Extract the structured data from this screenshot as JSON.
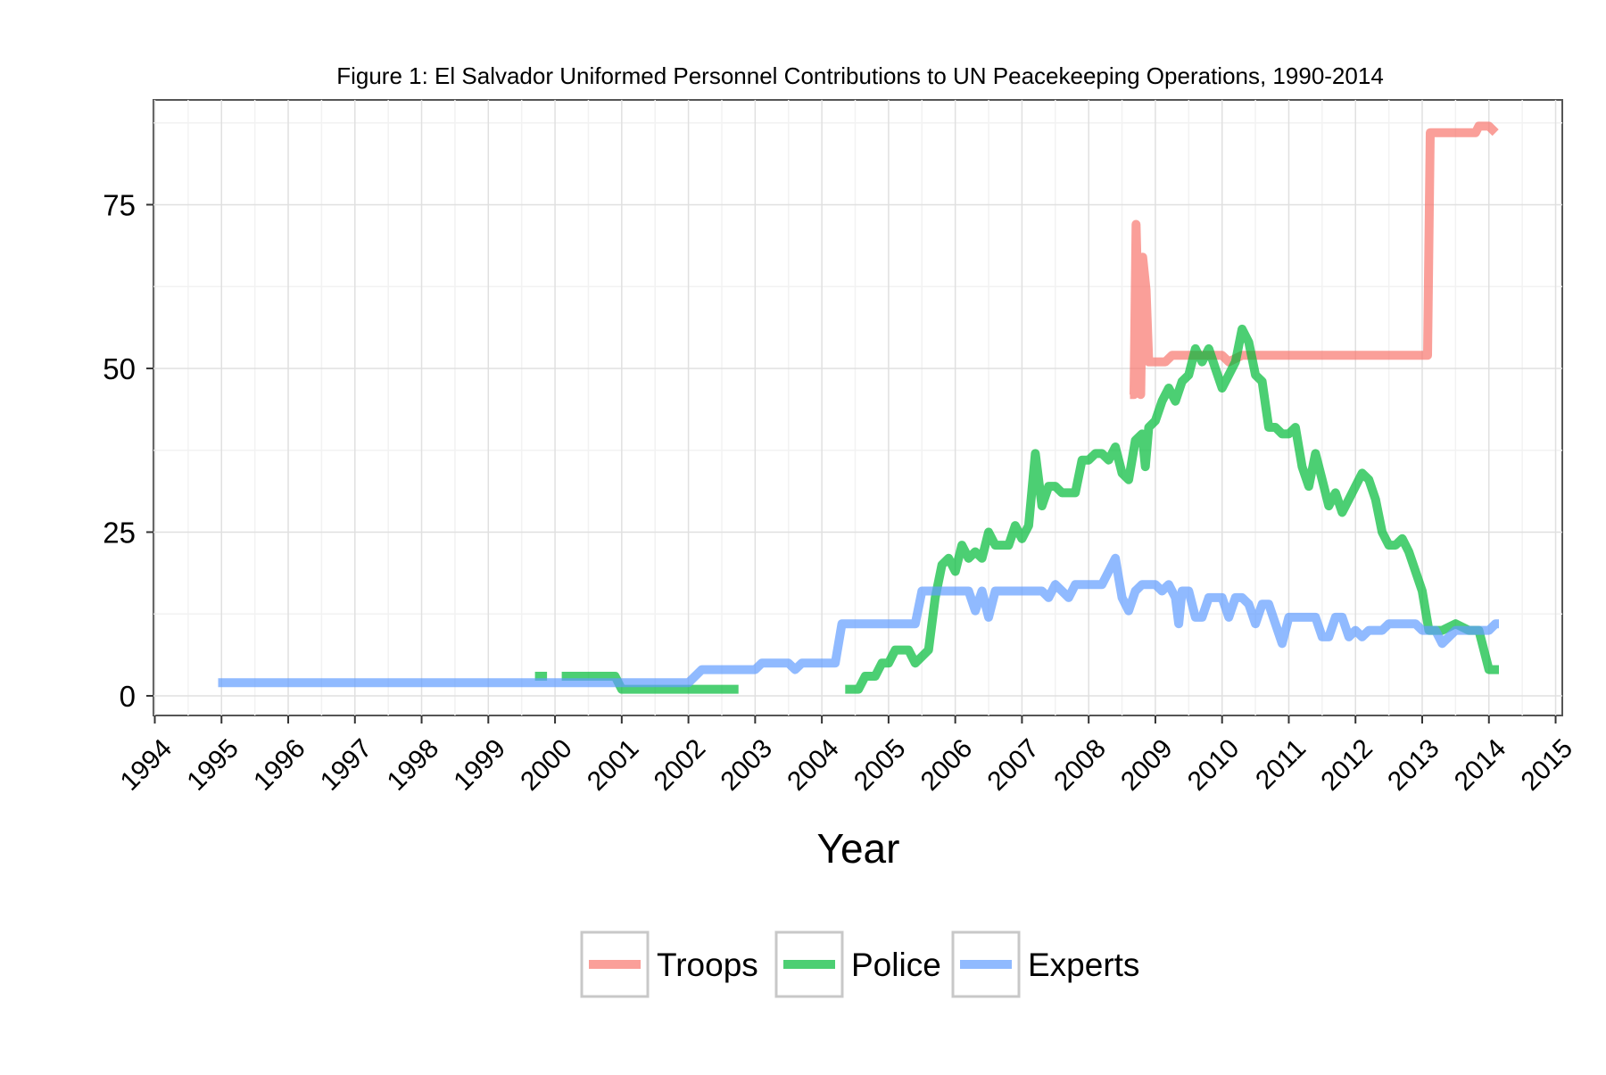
{
  "chart_data": {
    "type": "line",
    "title": "Figure 1: El Salvador Uniformed Personnel Contributions to UN Peacekeeping Operations, 1990-2014",
    "xlabel": "Year",
    "ylabel": "",
    "xlim": [
      1993.98,
      2015.1
    ],
    "ylim": [
      -3,
      91
    ],
    "x_ticks": [
      "1994",
      "1995",
      "1996",
      "1997",
      "1998",
      "1999",
      "2000",
      "2001",
      "2002",
      "2003",
      "2004",
      "2005",
      "2006",
      "2007",
      "2008",
      "2009",
      "2010",
      "2011",
      "2012",
      "2013",
      "2014",
      "2015"
    ],
    "y_ticks": [
      0,
      25,
      50,
      75
    ],
    "grid": true,
    "legend_position": "bottom",
    "series": [
      {
        "name": "Troops",
        "color": "#F8766D",
        "segments": [
          [
            [
              2008.62,
              46
            ],
            [
              2008.68,
              46
            ],
            [
              2008.71,
              72
            ],
            [
              2008.74,
              60
            ],
            [
              2008.78,
              46
            ],
            [
              2008.81,
              67
            ],
            [
              2008.86,
              62
            ],
            [
              2008.9,
              51
            ],
            [
              2009.0,
              51
            ],
            [
              2009.15,
              51
            ],
            [
              2009.25,
              52
            ],
            [
              2009.5,
              52
            ],
            [
              2009.9,
              52
            ],
            [
              2010.0,
              52
            ],
            [
              2010.1,
              51
            ],
            [
              2010.3,
              52
            ],
            [
              2010.5,
              52
            ],
            [
              2011.0,
              52
            ],
            [
              2012.0,
              52
            ],
            [
              2012.5,
              52
            ],
            [
              2013.08,
              52
            ],
            [
              2013.12,
              86
            ],
            [
              2013.5,
              86
            ],
            [
              2013.8,
              86
            ],
            [
              2013.85,
              87
            ],
            [
              2014.0,
              87
            ],
            [
              2014.1,
              86
            ]
          ]
        ]
      },
      {
        "name": "Police",
        "color": "#00BA38",
        "segments": [
          [
            [
              1999.7,
              3
            ],
            [
              1999.88,
              3
            ]
          ],
          [
            [
              2000.1,
              3
            ],
            [
              2000.9,
              3
            ],
            [
              2001.0,
              1
            ],
            [
              2002.75,
              1
            ]
          ],
          [
            [
              2004.35,
              1
            ],
            [
              2004.55,
              1
            ],
            [
              2004.65,
              3
            ],
            [
              2004.8,
              3
            ],
            [
              2004.9,
              5
            ],
            [
              2005.0,
              5
            ],
            [
              2005.1,
              7
            ],
            [
              2005.3,
              7
            ],
            [
              2005.4,
              5
            ],
            [
              2005.5,
              6
            ],
            [
              2005.6,
              7
            ],
            [
              2005.7,
              15
            ],
            [
              2005.8,
              20
            ],
            [
              2005.9,
              21
            ],
            [
              2006.0,
              19
            ],
            [
              2006.1,
              23
            ],
            [
              2006.2,
              21
            ],
            [
              2006.3,
              22
            ],
            [
              2006.4,
              21
            ],
            [
              2006.5,
              25
            ],
            [
              2006.6,
              23
            ],
            [
              2006.8,
              23
            ],
            [
              2006.9,
              26
            ],
            [
              2007.0,
              24
            ],
            [
              2007.1,
              26
            ],
            [
              2007.2,
              37
            ],
            [
              2007.3,
              29
            ],
            [
              2007.4,
              32
            ],
            [
              2007.5,
              32
            ],
            [
              2007.6,
              31
            ],
            [
              2007.8,
              31
            ],
            [
              2007.9,
              36
            ],
            [
              2008.0,
              36
            ],
            [
              2008.1,
              37
            ],
            [
              2008.2,
              37
            ],
            [
              2008.3,
              36
            ],
            [
              2008.4,
              38
            ],
            [
              2008.5,
              34
            ],
            [
              2008.6,
              33
            ],
            [
              2008.7,
              39
            ],
            [
              2008.8,
              40
            ],
            [
              2008.85,
              35
            ],
            [
              2008.9,
              41
            ],
            [
              2009.0,
              42
            ],
            [
              2009.1,
              45
            ],
            [
              2009.2,
              47
            ],
            [
              2009.3,
              45
            ],
            [
              2009.4,
              48
            ],
            [
              2009.5,
              49
            ],
            [
              2009.6,
              53
            ],
            [
              2009.7,
              51
            ],
            [
              2009.8,
              53
            ],
            [
              2009.9,
              50
            ],
            [
              2010.0,
              47
            ],
            [
              2010.1,
              49
            ],
            [
              2010.2,
              51
            ],
            [
              2010.3,
              56
            ],
            [
              2010.4,
              54
            ],
            [
              2010.5,
              49
            ],
            [
              2010.6,
              48
            ],
            [
              2010.7,
              41
            ],
            [
              2010.8,
              41
            ],
            [
              2010.9,
              40
            ],
            [
              2011.0,
              40
            ],
            [
              2011.1,
              41
            ],
            [
              2011.2,
              35
            ],
            [
              2011.3,
              32
            ],
            [
              2011.4,
              37
            ],
            [
              2011.5,
              33
            ],
            [
              2011.6,
              29
            ],
            [
              2011.7,
              31
            ],
            [
              2011.8,
              28
            ],
            [
              2011.9,
              30
            ],
            [
              2012.0,
              32
            ],
            [
              2012.1,
              34
            ],
            [
              2012.2,
              33
            ],
            [
              2012.3,
              30
            ],
            [
              2012.4,
              25
            ],
            [
              2012.5,
              23
            ],
            [
              2012.6,
              23
            ],
            [
              2012.7,
              24
            ],
            [
              2012.8,
              22
            ],
            [
              2012.9,
              19
            ],
            [
              2013.0,
              16
            ],
            [
              2013.1,
              10
            ],
            [
              2013.3,
              10
            ],
            [
              2013.5,
              11
            ],
            [
              2013.7,
              10
            ],
            [
              2013.85,
              10
            ],
            [
              2014.0,
              4
            ],
            [
              2014.15,
              4
            ]
          ]
        ]
      },
      {
        "name": "Experts",
        "color": "#619CFF",
        "segments": [
          [
            [
              1994.95,
              2
            ],
            [
              2000.0,
              2
            ],
            [
              2001.0,
              2
            ],
            [
              2002.0,
              2
            ],
            [
              2002.2,
              4
            ],
            [
              2003.0,
              4
            ],
            [
              2003.1,
              5
            ],
            [
              2003.5,
              5
            ],
            [
              2003.6,
              4
            ],
            [
              2003.7,
              5
            ],
            [
              2004.0,
              5
            ],
            [
              2004.2,
              5
            ],
            [
              2004.3,
              11
            ],
            [
              2005.0,
              11
            ],
            [
              2005.4,
              11
            ],
            [
              2005.5,
              16
            ],
            [
              2006.0,
              16
            ],
            [
              2006.2,
              16
            ],
            [
              2006.3,
              13
            ],
            [
              2006.4,
              16
            ],
            [
              2006.5,
              12
            ],
            [
              2006.6,
              16
            ],
            [
              2007.0,
              16
            ],
            [
              2007.3,
              16
            ],
            [
              2007.4,
              15
            ],
            [
              2007.5,
              17
            ],
            [
              2007.6,
              16
            ],
            [
              2007.7,
              15
            ],
            [
              2007.8,
              17
            ],
            [
              2008.0,
              17
            ],
            [
              2008.2,
              17
            ],
            [
              2008.3,
              19
            ],
            [
              2008.4,
              21
            ],
            [
              2008.45,
              18
            ],
            [
              2008.5,
              15
            ],
            [
              2008.6,
              13
            ],
            [
              2008.7,
              16
            ],
            [
              2008.8,
              17
            ],
            [
              2009.0,
              17
            ],
            [
              2009.1,
              16
            ],
            [
              2009.2,
              17
            ],
            [
              2009.3,
              15
            ],
            [
              2009.35,
              11
            ],
            [
              2009.4,
              16
            ],
            [
              2009.5,
              16
            ],
            [
              2009.6,
              12
            ],
            [
              2009.7,
              12
            ],
            [
              2009.8,
              15
            ],
            [
              2010.0,
              15
            ],
            [
              2010.1,
              12
            ],
            [
              2010.2,
              15
            ],
            [
              2010.3,
              15
            ],
            [
              2010.4,
              14
            ],
            [
              2010.5,
              11
            ],
            [
              2010.6,
              14
            ],
            [
              2010.7,
              14
            ],
            [
              2010.8,
              11
            ],
            [
              2010.9,
              8
            ],
            [
              2011.0,
              12
            ],
            [
              2011.2,
              12
            ],
            [
              2011.4,
              12
            ],
            [
              2011.5,
              9
            ],
            [
              2011.6,
              9
            ],
            [
              2011.7,
              12
            ],
            [
              2011.8,
              12
            ],
            [
              2011.9,
              9
            ],
            [
              2012.0,
              10
            ],
            [
              2012.1,
              9
            ],
            [
              2012.2,
              10
            ],
            [
              2012.3,
              10
            ],
            [
              2012.4,
              10
            ],
            [
              2012.5,
              11
            ],
            [
              2012.7,
              11
            ],
            [
              2012.9,
              11
            ],
            [
              2013.0,
              10
            ],
            [
              2013.2,
              10
            ],
            [
              2013.3,
              8
            ],
            [
              2013.4,
              9
            ],
            [
              2013.5,
              10
            ],
            [
              2013.8,
              10
            ],
            [
              2014.0,
              10
            ],
            [
              2014.1,
              11
            ],
            [
              2014.15,
              11
            ]
          ]
        ]
      }
    ]
  }
}
